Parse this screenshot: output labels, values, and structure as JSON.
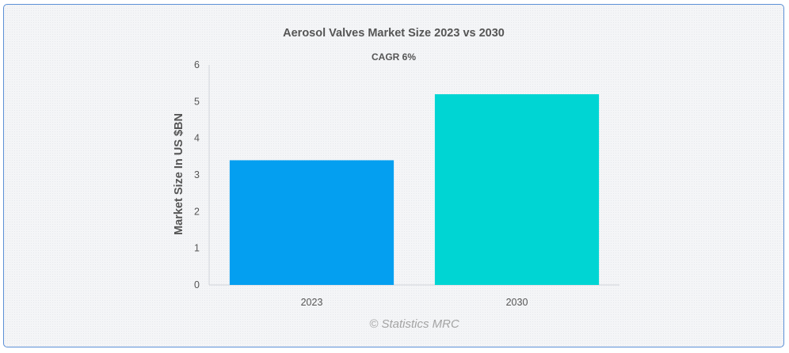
{
  "chart_data": {
    "type": "bar",
    "title": "Aerosol Valves Market Size 2023 vs 2030",
    "subtitle": "CAGR 6%",
    "categories": [
      "2023",
      "2030"
    ],
    "values": [
      3.4,
      5.2
    ],
    "bar_colors": [
      "#049ff0",
      "#00d5d3"
    ],
    "xlabel": "",
    "ylabel": "Market Size In US $BN",
    "ylim": [
      0,
      6
    ],
    "yticks": [
      "0",
      "1",
      "2",
      "3",
      "4",
      "5",
      "6"
    ],
    "grid": false,
    "credit": "© Statistics MRC"
  }
}
